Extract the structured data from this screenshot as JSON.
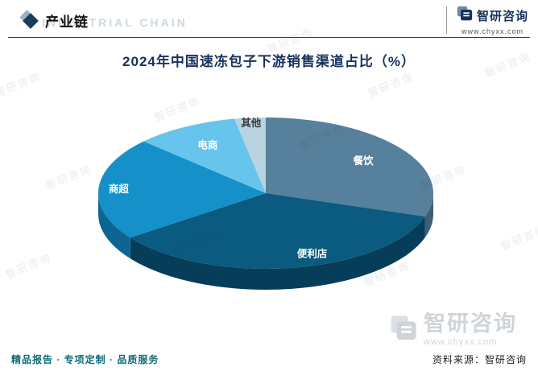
{
  "header": {
    "section_label": "产业链",
    "watermark_en": "INDUSTRIAL CHAIN"
  },
  "brand": {
    "name": "智研咨询",
    "url": "www.chyxx.com"
  },
  "chart_data": {
    "type": "pie",
    "title": "2024年中国速冻包子下游销售渠道占比（%）",
    "categories": [
      "餐饮",
      "便利店",
      "商超",
      "电商",
      "其他"
    ],
    "values": [
      30,
      35,
      22,
      10,
      3
    ],
    "unit": "%",
    "colors": [
      "#56809c",
      "#0b5a80",
      "#1590c8",
      "#67c4ec",
      "#b7d3e0"
    ],
    "side_colors": [
      "#3d5e75",
      "#063e59",
      "#0d6591",
      "#4795b8",
      "#8aa6b4"
    ],
    "label_colors": [
      "#ffffff",
      "#ffffff",
      "#ffffff",
      "#ffffff",
      "#3a3a3a"
    ],
    "start_angle_deg": 0,
    "clockwise": true,
    "style": "3d",
    "legend": "labels-on-slices"
  },
  "footer": {
    "left": "精品报告 · 专项定制 · 品质服务",
    "source": "资料来源：智研咨询"
  }
}
